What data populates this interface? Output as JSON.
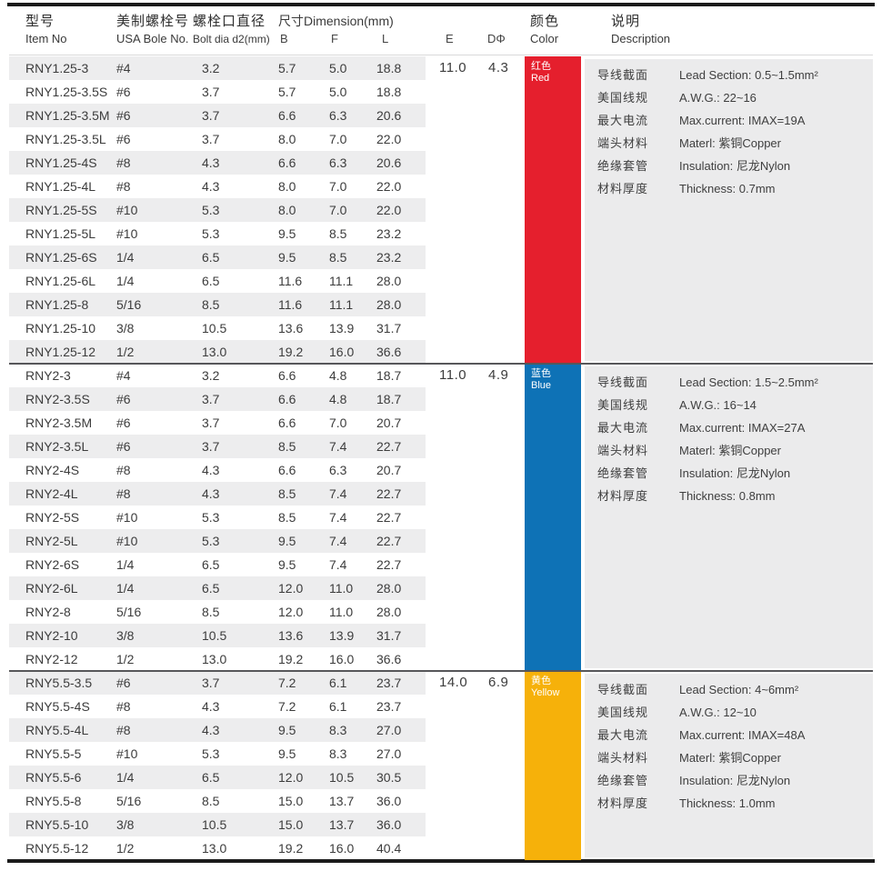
{
  "header": {
    "item_no_zh": "型号",
    "item_no_en": "Item No",
    "usa_bolt_zh": "美制螺栓号",
    "usa_bolt_en": "USA Bole No.",
    "bolt_dia_zh": "螺栓口直径",
    "bolt_dia_en": "Bolt dia d2(mm)",
    "dimension_label": "尺寸Dimension(mm)",
    "col_b": "B",
    "col_f": "F",
    "col_l": "L",
    "col_e": "E",
    "col_d": "DΦ",
    "color_zh": "颜色",
    "color_en": "Color",
    "desc_zh": "说明",
    "desc_en": "Description"
  },
  "groups": [
    {
      "e": "11.0",
      "d": "4.3",
      "color_zh": "红色",
      "color_en": "Red",
      "color_hex": "#e51f2d",
      "rows": [
        [
          "RNY1.25-3",
          "#4",
          "3.2",
          "5.7",
          "5.0",
          "18.8"
        ],
        [
          "RNY1.25-3.5S",
          "#6",
          "3.7",
          "5.7",
          "5.0",
          "18.8"
        ],
        [
          "RNY1.25-3.5M",
          "#6",
          "3.7",
          "6.6",
          "6.3",
          "20.6"
        ],
        [
          "RNY1.25-3.5L",
          "#6",
          "3.7",
          "8.0",
          "7.0",
          "22.0"
        ],
        [
          "RNY1.25-4S",
          "#8",
          "4.3",
          "6.6",
          "6.3",
          "20.6"
        ],
        [
          "RNY1.25-4L",
          "#8",
          "4.3",
          "8.0",
          "7.0",
          "22.0"
        ],
        [
          "RNY1.25-5S",
          "#10",
          "5.3",
          "8.0",
          "7.0",
          "22.0"
        ],
        [
          "RNY1.25-5L",
          "#10",
          "5.3",
          "9.5",
          "8.5",
          "23.2"
        ],
        [
          "RNY1.25-6S",
          "1/4",
          "6.5",
          "9.5",
          "8.5",
          "23.2"
        ],
        [
          "RNY1.25-6L",
          "1/4",
          "6.5",
          "11.6",
          "11.1",
          "28.0"
        ],
        [
          "RNY1.25-8",
          "5/16",
          "8.5",
          "11.6",
          "11.1",
          "28.0"
        ],
        [
          "RNY1.25-10",
          "3/8",
          "10.5",
          "13.6",
          "13.9",
          "31.7"
        ],
        [
          "RNY1.25-12",
          "1/2",
          "13.0",
          "19.2",
          "16.0",
          "36.6"
        ]
      ],
      "specs": [
        {
          "zh": "导线截面",
          "en": "Lead Section: 0.5~1.5mm²"
        },
        {
          "zh": "美国线规",
          "en": "A.W.G.: 22~16"
        },
        {
          "zh": "最大电流",
          "en": "Max.current: IMAX=19A"
        },
        {
          "zh": "端头材料",
          "en": "Materl: 紫铜Copper"
        },
        {
          "zh": "绝缘套管",
          "en": "Insulation: 尼龙Nylon"
        },
        {
          "zh": "材料厚度",
          "en": "Thickness: 0.7mm"
        }
      ]
    },
    {
      "e": "11.0",
      "d": "4.9",
      "color_zh": "蓝色",
      "color_en": "Blue",
      "color_hex": "#0e72b6",
      "rows": [
        [
          "RNY2-3",
          "#4",
          "3.2",
          "6.6",
          "4.8",
          "18.7"
        ],
        [
          "RNY2-3.5S",
          "#6",
          "3.7",
          "6.6",
          "4.8",
          "18.7"
        ],
        [
          "RNY2-3.5M",
          "#6",
          "3.7",
          "6.6",
          "7.0",
          "20.7"
        ],
        [
          "RNY2-3.5L",
          "#6",
          "3.7",
          "8.5",
          "7.4",
          "22.7"
        ],
        [
          "RNY2-4S",
          "#8",
          "4.3",
          "6.6",
          "6.3",
          "20.7"
        ],
        [
          "RNY2-4L",
          "#8",
          "4.3",
          "8.5",
          "7.4",
          "22.7"
        ],
        [
          "RNY2-5S",
          "#10",
          "5.3",
          "8.5",
          "7.4",
          "22.7"
        ],
        [
          "RNY2-5L",
          "#10",
          "5.3",
          "9.5",
          "7.4",
          "22.7"
        ],
        [
          "RNY2-6S",
          "1/4",
          "6.5",
          "9.5",
          "7.4",
          "22.7"
        ],
        [
          "RNY2-6L",
          "1/4",
          "6.5",
          "12.0",
          "11.0",
          "28.0"
        ],
        [
          "RNY2-8",
          "5/16",
          "8.5",
          "12.0",
          "11.0",
          "28.0"
        ],
        [
          "RNY2-10",
          "3/8",
          "10.5",
          "13.6",
          "13.9",
          "31.7"
        ],
        [
          "RNY2-12",
          "1/2",
          "13.0",
          "19.2",
          "16.0",
          "36.6"
        ]
      ],
      "specs": [
        {
          "zh": "导线截面",
          "en": "Lead Section: 1.5~2.5mm²"
        },
        {
          "zh": "美国线规",
          "en": "A.W.G.: 16~14"
        },
        {
          "zh": "最大电流",
          "en": "Max.current: IMAX=27A"
        },
        {
          "zh": "端头材料",
          "en": "Materl: 紫铜Copper"
        },
        {
          "zh": "绝缘套管",
          "en": "Insulation: 尼龙Nylon"
        },
        {
          "zh": "材料厚度",
          "en": "Thickness: 0.8mm"
        }
      ]
    },
    {
      "e": "14.0",
      "d": "6.9",
      "color_zh": "黄色",
      "color_en": "Yellow",
      "color_hex": "#f6b10a",
      "rows": [
        [
          "RNY5.5-3.5",
          "#6",
          "3.7",
          "7.2",
          "6.1",
          "23.7"
        ],
        [
          "RNY5.5-4S",
          "#8",
          "4.3",
          "7.2",
          "6.1",
          "23.7"
        ],
        [
          "RNY5.5-4L",
          "#8",
          "4.3",
          "9.5",
          "8.3",
          "27.0"
        ],
        [
          "RNY5.5-5",
          "#10",
          "5.3",
          "9.5",
          "8.3",
          "27.0"
        ],
        [
          "RNY5.5-6",
          "1/4",
          "6.5",
          "12.0",
          "10.5",
          "30.5"
        ],
        [
          "RNY5.5-8",
          "5/16",
          "8.5",
          "15.0",
          "13.7",
          "36.0"
        ],
        [
          "RNY5.5-10",
          "3/8",
          "10.5",
          "15.0",
          "13.7",
          "36.0"
        ],
        [
          "RNY5.5-12",
          "1/2",
          "13.0",
          "19.2",
          "16.0",
          "40.4"
        ]
      ],
      "specs": [
        {
          "zh": "导线截面",
          "en": "Lead Section: 4~6mm²"
        },
        {
          "zh": "美国线规",
          "en": "A.W.G.: 12~10"
        },
        {
          "zh": "最大电流",
          "en": "Max.current: IMAX=48A"
        },
        {
          "zh": "端头材料",
          "en": "Materl: 紫铜Copper"
        },
        {
          "zh": "绝缘套管",
          "en": "Insulation: 尼龙Nylon"
        },
        {
          "zh": "材料厚度",
          "en": "Thickness: 1.0mm"
        }
      ]
    }
  ]
}
